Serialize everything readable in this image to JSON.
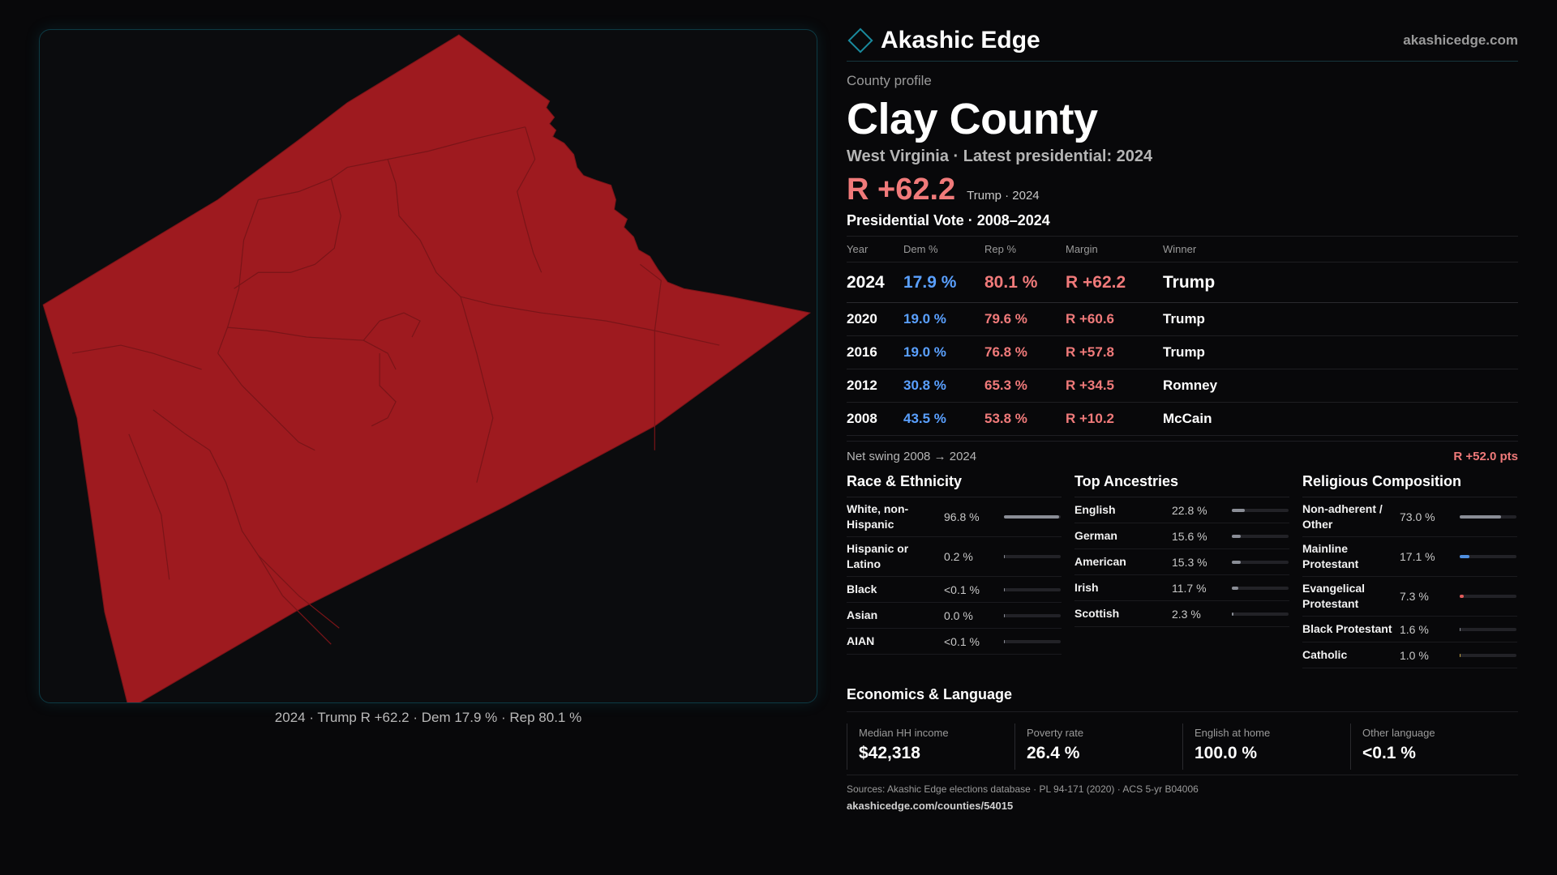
{
  "brand": {
    "name": "Akashic Edge",
    "url": "akashicedge.com"
  },
  "profile": {
    "eyebrow": "County profile",
    "title": "Clay County",
    "subtitle": "West Virginia · Latest presidential: 2024",
    "headline_margin": "R +62.2",
    "headline_note": "Trump · 2024"
  },
  "map": {
    "caption": "2024 · Trump R +62.2 · Dem 17.9 % · Rep 80.1 %",
    "fill_color": "#9e1a1f",
    "border_color": "#7a1418"
  },
  "votes": {
    "title": "Presidential Vote · 2008–2024",
    "headers": {
      "year": "Year",
      "dem": "Dem %",
      "rep": "Rep %",
      "margin": "Margin",
      "winner": "Winner"
    },
    "rows": [
      {
        "year": "2024",
        "dem": "17.9 %",
        "rep": "80.1 %",
        "margin": "R +62.2",
        "winner": "Trump"
      },
      {
        "year": "2020",
        "dem": "19.0 %",
        "rep": "79.6 %",
        "margin": "R +60.6",
        "winner": "Trump"
      },
      {
        "year": "2016",
        "dem": "19.0 %",
        "rep": "76.8 %",
        "margin": "R +57.8",
        "winner": "Trump"
      },
      {
        "year": "2012",
        "dem": "30.8 %",
        "rep": "65.3 %",
        "margin": "R +34.5",
        "winner": "Romney"
      },
      {
        "year": "2008",
        "dem": "43.5 %",
        "rep": "53.8 %",
        "margin": "R +10.2",
        "winner": "McCain"
      }
    ]
  },
  "swing": {
    "label": "Net swing 2008 → 2024",
    "value": "R +52.0 pts"
  },
  "race": {
    "title": "Race & Ethnicity",
    "rows": [
      {
        "label": "White, non-Hispanic",
        "value": "96.8 %",
        "fraction": 0.968,
        "color": "#8a8d96"
      },
      {
        "label": "Hispanic or Latino",
        "value": "0.2 %",
        "fraction": 0.002,
        "color": "#8a8d96"
      },
      {
        "label": "Black",
        "value": "<0.1 %",
        "fraction": 0.0,
        "color": "#8a8d96"
      },
      {
        "label": "Asian",
        "value": "0.0 %",
        "fraction": 0.0,
        "color": "#8a8d96"
      },
      {
        "label": "AIAN",
        "value": "<0.1 %",
        "fraction": 0.0,
        "color": "#8a8d96"
      }
    ]
  },
  "ancestry": {
    "title": "Top Ancestries",
    "rows": [
      {
        "label": "English",
        "value": "22.8 %",
        "fraction": 0.228,
        "color": "#8a8d96"
      },
      {
        "label": "German",
        "value": "15.6 %",
        "fraction": 0.156,
        "color": "#8a8d96"
      },
      {
        "label": "American",
        "value": "15.3 %",
        "fraction": 0.153,
        "color": "#8a8d96"
      },
      {
        "label": "Irish",
        "value": "11.7 %",
        "fraction": 0.117,
        "color": "#8a8d96"
      },
      {
        "label": "Scottish",
        "value": "2.3 %",
        "fraction": 0.023,
        "color": "#8a8d96"
      }
    ]
  },
  "religion": {
    "title": "Religious Composition",
    "rows": [
      {
        "label": "Non-adherent / Other",
        "value": "73.0 %",
        "fraction": 0.73,
        "color": "#8a8d96"
      },
      {
        "label": "Mainline Protestant",
        "value": "17.1 %",
        "fraction": 0.171,
        "color": "#4f8fe0"
      },
      {
        "label": "Evangelical Protestant",
        "value": "7.3 %",
        "fraction": 0.073,
        "color": "#e05a5a"
      },
      {
        "label": "Black Protestant",
        "value": "1.6 %",
        "fraction": 0.016,
        "color": "#8a8d96"
      },
      {
        "label": "Catholic",
        "value": "1.0 %",
        "fraction": 0.01,
        "color": "#c9a640"
      }
    ]
  },
  "economics": {
    "title": "Economics & Language",
    "cells": [
      {
        "label": "Median HH income",
        "value": "$42,318"
      },
      {
        "label": "Poverty rate",
        "value": "26.4 %"
      },
      {
        "label": "English at home",
        "value": "100.0 %"
      },
      {
        "label": "Other language",
        "value": "<0.1 %"
      }
    ]
  },
  "footer": {
    "sources": "Sources: Akashic Edge elections database · PL 94-171 (2020) · ACS 5-yr B04006",
    "permalink": "akashicedge.com/counties/54015"
  }
}
